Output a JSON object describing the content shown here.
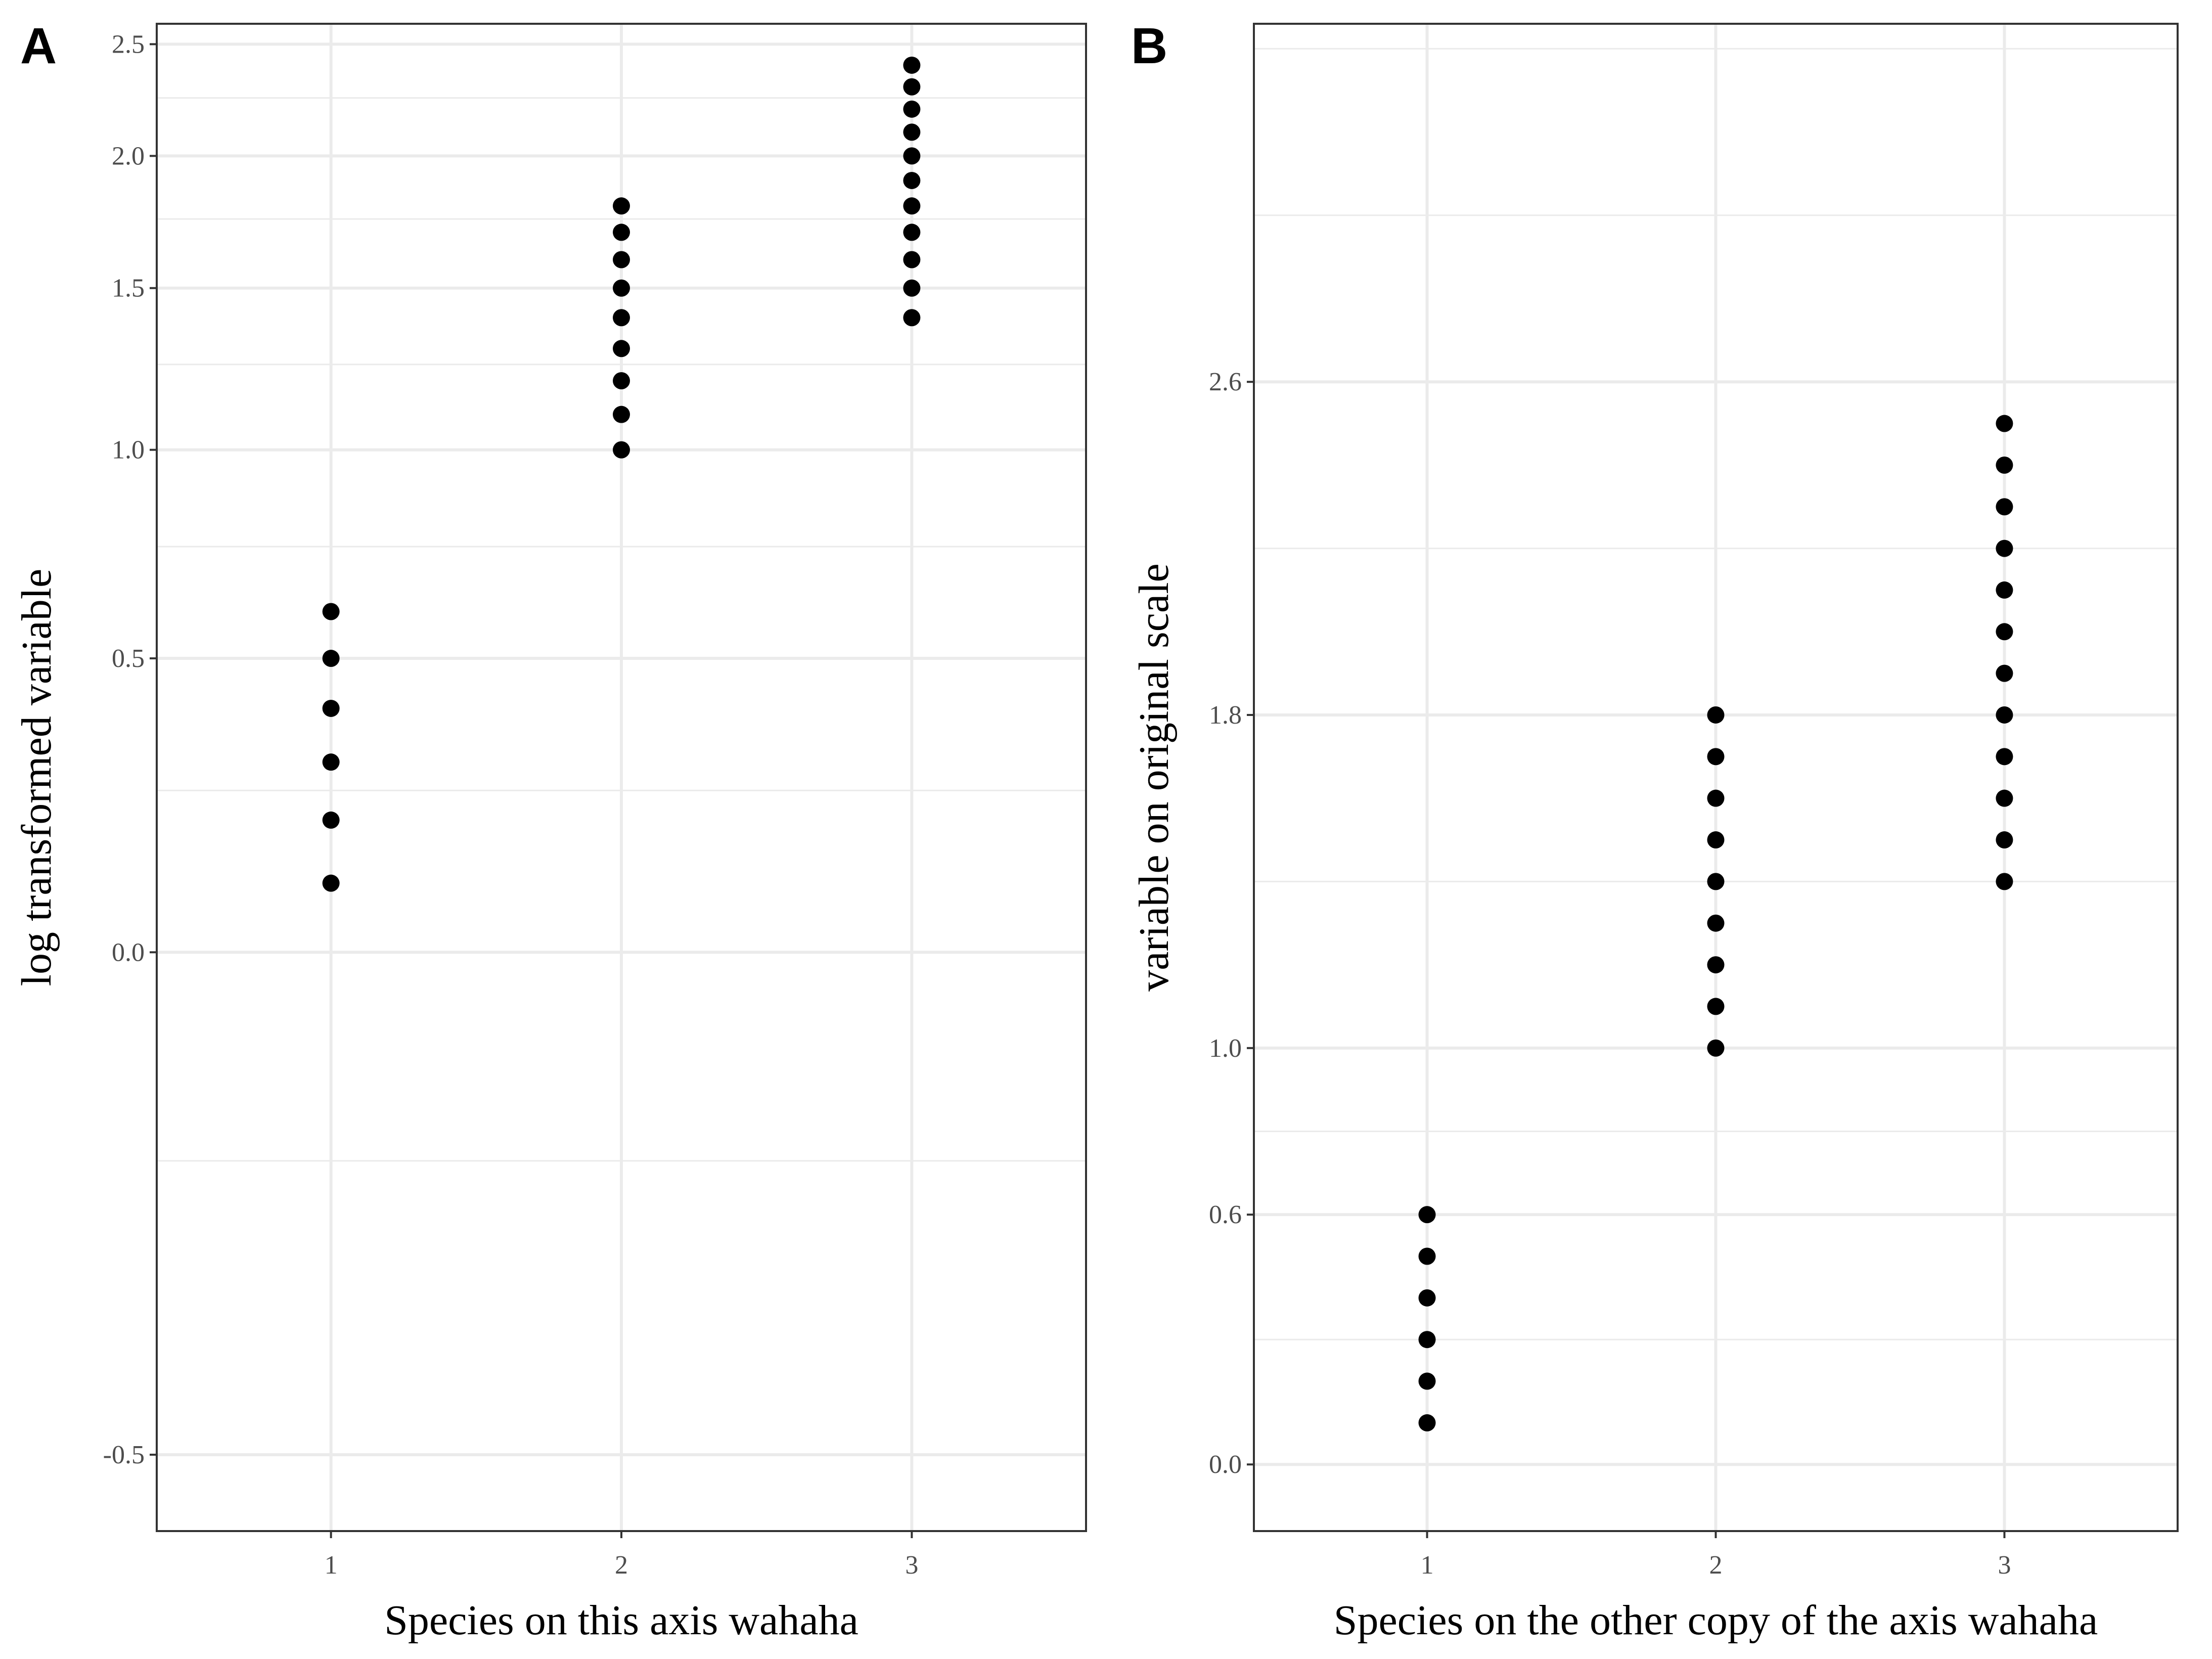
{
  "colors": {
    "point": "#000000",
    "grid": "#ebebeb",
    "border": "#333333",
    "tick_text": "#4d4d4d"
  },
  "chart_data": [
    {
      "tag": "A",
      "type": "scatter",
      "xlabel": "Species on this axis wahaha",
      "ylabel": "log transformed variable",
      "xlim": [
        0.4,
        3.6
      ],
      "ylim": [
        -0.55,
        2.6
      ],
      "x_ticks": [
        1,
        2,
        3
      ],
      "x_tick_labels": [
        "1",
        "2",
        "3"
      ],
      "y_ticks": [
        -0.5,
        0.0,
        0.5,
        1.0,
        1.5,
        2.0,
        2.5
      ],
      "y_tick_labels": [
        "-0.5",
        "0.0",
        "0.5",
        "1.0",
        "1.5",
        "2.0",
        "2.5"
      ],
      "y_tick_scale": "log-style",
      "grid": true,
      "points": [
        {
          "x": 1,
          "y": 0.1
        },
        {
          "x": 1,
          "y": 0.2
        },
        {
          "x": 1,
          "y": 0.3
        },
        {
          "x": 1,
          "y": 0.4
        },
        {
          "x": 1,
          "y": 0.5
        },
        {
          "x": 1,
          "y": 0.6
        },
        {
          "x": 2,
          "y": 1.0
        },
        {
          "x": 2,
          "y": 1.1
        },
        {
          "x": 2,
          "y": 1.2
        },
        {
          "x": 2,
          "y": 1.3
        },
        {
          "x": 2,
          "y": 1.4
        },
        {
          "x": 2,
          "y": 1.5
        },
        {
          "x": 2,
          "y": 1.6
        },
        {
          "x": 2,
          "y": 1.7
        },
        {
          "x": 2,
          "y": 1.8
        },
        {
          "x": 3,
          "y": 1.4
        },
        {
          "x": 3,
          "y": 1.5
        },
        {
          "x": 3,
          "y": 1.6
        },
        {
          "x": 3,
          "y": 1.7
        },
        {
          "x": 3,
          "y": 1.8
        },
        {
          "x": 3,
          "y": 1.9
        },
        {
          "x": 3,
          "y": 2.0
        },
        {
          "x": 3,
          "y": 2.1
        },
        {
          "x": 3,
          "y": 2.2
        },
        {
          "x": 3,
          "y": 2.3
        },
        {
          "x": 3,
          "y": 2.4
        }
      ]
    },
    {
      "tag": "B",
      "type": "scatter",
      "xlabel": "Species on the other copy of the axis wahaha",
      "ylabel": "variable on original scale",
      "xlim": [
        0.4,
        3.6
      ],
      "ylim": [
        -0.16,
        3.46
      ],
      "x_ticks": [
        1,
        2,
        3
      ],
      "x_tick_labels": [
        "1",
        "2",
        "3"
      ],
      "y_ticks": [
        0.0,
        0.6,
        1.0,
        1.8,
        2.6
      ],
      "y_tick_labels": [
        "0.0",
        "0.6",
        "1.0",
        "1.8",
        "2.6"
      ],
      "grid": true,
      "points": [
        {
          "x": 1,
          "y": 0.1
        },
        {
          "x": 1,
          "y": 0.2
        },
        {
          "x": 1,
          "y": 0.3
        },
        {
          "x": 1,
          "y": 0.4
        },
        {
          "x": 1,
          "y": 0.5
        },
        {
          "x": 1,
          "y": 0.6
        },
        {
          "x": 2,
          "y": 1.0
        },
        {
          "x": 2,
          "y": 1.1
        },
        {
          "x": 2,
          "y": 1.2
        },
        {
          "x": 2,
          "y": 1.3
        },
        {
          "x": 2,
          "y": 1.4
        },
        {
          "x": 2,
          "y": 1.5
        },
        {
          "x": 2,
          "y": 1.6
        },
        {
          "x": 2,
          "y": 1.7
        },
        {
          "x": 2,
          "y": 1.8
        },
        {
          "x": 3,
          "y": 1.4
        },
        {
          "x": 3,
          "y": 1.5
        },
        {
          "x": 3,
          "y": 1.6
        },
        {
          "x": 3,
          "y": 1.7
        },
        {
          "x": 3,
          "y": 1.8
        },
        {
          "x": 3,
          "y": 1.9
        },
        {
          "x": 3,
          "y": 2.0
        },
        {
          "x": 3,
          "y": 2.1
        },
        {
          "x": 3,
          "y": 2.2
        },
        {
          "x": 3,
          "y": 2.3
        },
        {
          "x": 3,
          "y": 2.4
        },
        {
          "x": 3,
          "y": 2.5
        }
      ]
    }
  ]
}
